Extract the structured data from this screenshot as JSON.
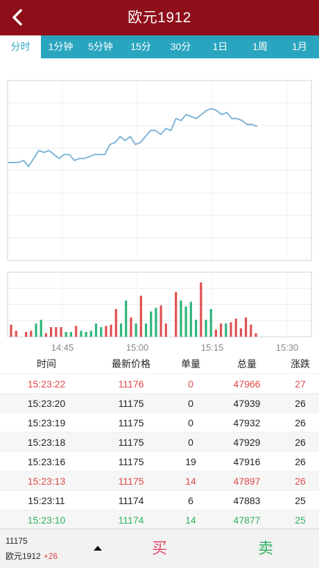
{
  "header": {
    "title": "欧元1912"
  },
  "tabs": [
    {
      "label": "分时",
      "active": true
    },
    {
      "label": "1分钟"
    },
    {
      "label": "5分钟"
    },
    {
      "label": "15分"
    },
    {
      "label": "30分"
    },
    {
      "label": "1日"
    },
    {
      "label": "1周"
    },
    {
      "label": "1月"
    }
  ],
  "colors": {
    "header": "#8e0e1a",
    "tabs": "#2aa5bf",
    "line": "#7fb4d8",
    "up": "#e05050",
    "down": "#2fb57a"
  },
  "chart_data": {
    "type": "line",
    "x_ticks": [
      "14:45",
      "15:00",
      "15:15",
      "15:30"
    ],
    "price_series": [
      11149,
      11149,
      11149,
      11150,
      11147,
      11151,
      11155,
      11154,
      11155,
      11153,
      11151,
      11153,
      11153,
      11150,
      11151,
      11151,
      11152,
      11153,
      11153,
      11153,
      11158,
      11159,
      11162,
      11160,
      11162,
      11158,
      11159,
      11162,
      11165,
      11165,
      11163,
      11166,
      11165,
      11171,
      11170,
      11173,
      11172,
      11171,
      11173,
      11175,
      11176,
      11175,
      11173,
      11174,
      11171,
      11171,
      11170,
      11168,
      11168,
      11167
    ],
    "volume_series": [
      {
        "v": 10,
        "up": true
      },
      {
        "v": 5,
        "up": true
      },
      {
        "v": 0,
        "up": true
      },
      {
        "v": 4,
        "up": true
      },
      {
        "v": 5,
        "up": true
      },
      {
        "v": 11,
        "up": false
      },
      {
        "v": 14,
        "up": false
      },
      {
        "v": 3,
        "up": true
      },
      {
        "v": 8,
        "up": true
      },
      {
        "v": 8,
        "up": true
      },
      {
        "v": 8,
        "up": true
      },
      {
        "v": 4,
        "up": false
      },
      {
        "v": 4,
        "up": false
      },
      {
        "v": 9,
        "up": true
      },
      {
        "v": 5,
        "up": false
      },
      {
        "v": 4,
        "up": false
      },
      {
        "v": 5,
        "up": false
      },
      {
        "v": 11,
        "up": false
      },
      {
        "v": 8,
        "up": false
      },
      {
        "v": 9,
        "up": true
      },
      {
        "v": 10,
        "up": true
      },
      {
        "v": 23,
        "up": true
      },
      {
        "v": 11,
        "up": false
      },
      {
        "v": 30,
        "up": false
      },
      {
        "v": 16,
        "up": true
      },
      {
        "v": 11,
        "up": false
      },
      {
        "v": 34,
        "up": true
      },
      {
        "v": 11,
        "up": false
      },
      {
        "v": 21,
        "up": false
      },
      {
        "v": 24,
        "up": false
      },
      {
        "v": 26,
        "up": true
      },
      {
        "v": 11,
        "up": true
      },
      {
        "v": 0,
        "up": false
      },
      {
        "v": 37,
        "up": true
      },
      {
        "v": 30,
        "up": false
      },
      {
        "v": 25,
        "up": false
      },
      {
        "v": 29,
        "up": false
      },
      {
        "v": 14,
        "up": false
      },
      {
        "v": 45,
        "up": true
      },
      {
        "v": 14,
        "up": false
      },
      {
        "v": 23,
        "up": false
      },
      {
        "v": 6,
        "up": true
      },
      {
        "v": 11,
        "up": true
      },
      {
        "v": 11,
        "up": false
      },
      {
        "v": 12,
        "up": true
      },
      {
        "v": 15,
        "up": true
      },
      {
        "v": 7,
        "up": true
      },
      {
        "v": 16,
        "up": true
      },
      {
        "v": 10,
        "up": true
      },
      {
        "v": 3,
        "up": true
      }
    ]
  },
  "table": {
    "headers": [
      "时间",
      "最新价格",
      "单量",
      "总量",
      "涨跌"
    ],
    "rows": [
      {
        "time": "15:23:22",
        "price": "11176",
        "qty": "0",
        "total": "47966",
        "change": "27",
        "color": "up"
      },
      {
        "time": "15:23:20",
        "price": "11175",
        "qty": "0",
        "total": "47939",
        "change": "26",
        "color": "flat"
      },
      {
        "time": "15:23:19",
        "price": "11175",
        "qty": "0",
        "total": "47932",
        "change": "26",
        "color": "flat"
      },
      {
        "time": "15:23:18",
        "price": "11175",
        "qty": "0",
        "total": "47929",
        "change": "26",
        "color": "flat"
      },
      {
        "time": "15:23:16",
        "price": "11175",
        "qty": "19",
        "total": "47916",
        "change": "26",
        "color": "flat"
      },
      {
        "time": "15:23:13",
        "price": "11175",
        "qty": "14",
        "total": "47897",
        "change": "26",
        "color": "up"
      },
      {
        "time": "15:23:11",
        "price": "11174",
        "qty": "6",
        "total": "47883",
        "change": "25",
        "color": "flat"
      },
      {
        "time": "15:23:10",
        "price": "11174",
        "qty": "14",
        "total": "47877",
        "change": "25",
        "color": "down"
      }
    ]
  },
  "bottom": {
    "price": "11175",
    "name": "欧元1912",
    "change": "+26",
    "buy_label": "买",
    "sell_label": "卖"
  }
}
